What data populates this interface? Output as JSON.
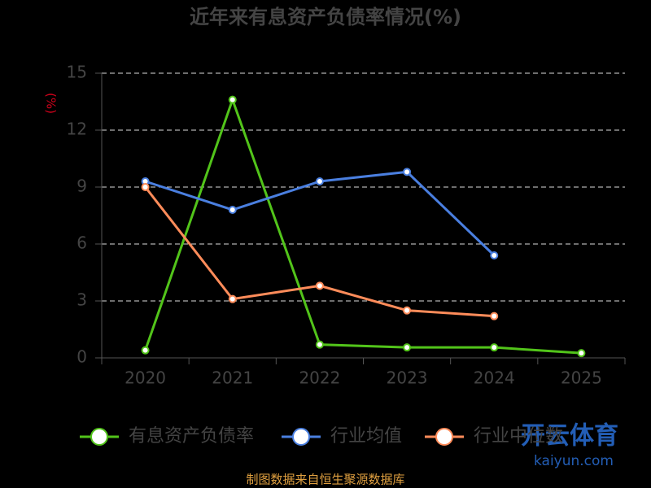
{
  "chart_data": {
    "type": "line",
    "title": "近年来有息资产负债率情况(%)",
    "y_label": "(%)",
    "categories": [
      "2020",
      "2021",
      "2022",
      "2023",
      "2024",
      "2025"
    ],
    "series": [
      {
        "name": "有息资产负债率",
        "color": "#52c41a",
        "values": [
          0.4,
          13.6,
          0.7,
          0.55,
          0.55,
          0.25
        ]
      },
      {
        "name": "行业均值",
        "color": "#4a7fe0",
        "values": [
          9.3,
          7.8,
          9.3,
          9.8,
          5.4,
          null
        ]
      },
      {
        "name": "行业中位数",
        "color": "#ff8c5a",
        "values": [
          9.0,
          3.1,
          3.8,
          2.5,
          2.2,
          null
        ]
      }
    ],
    "ylim": [
      0,
      15
    ],
    "yticks": [
      0,
      3,
      6,
      9,
      12,
      15
    ],
    "grid": true,
    "source": "制图数据来自恒生聚源数据库",
    "watermark": {
      "brand": "开云体育",
      "site": "kaiyun.com"
    }
  }
}
